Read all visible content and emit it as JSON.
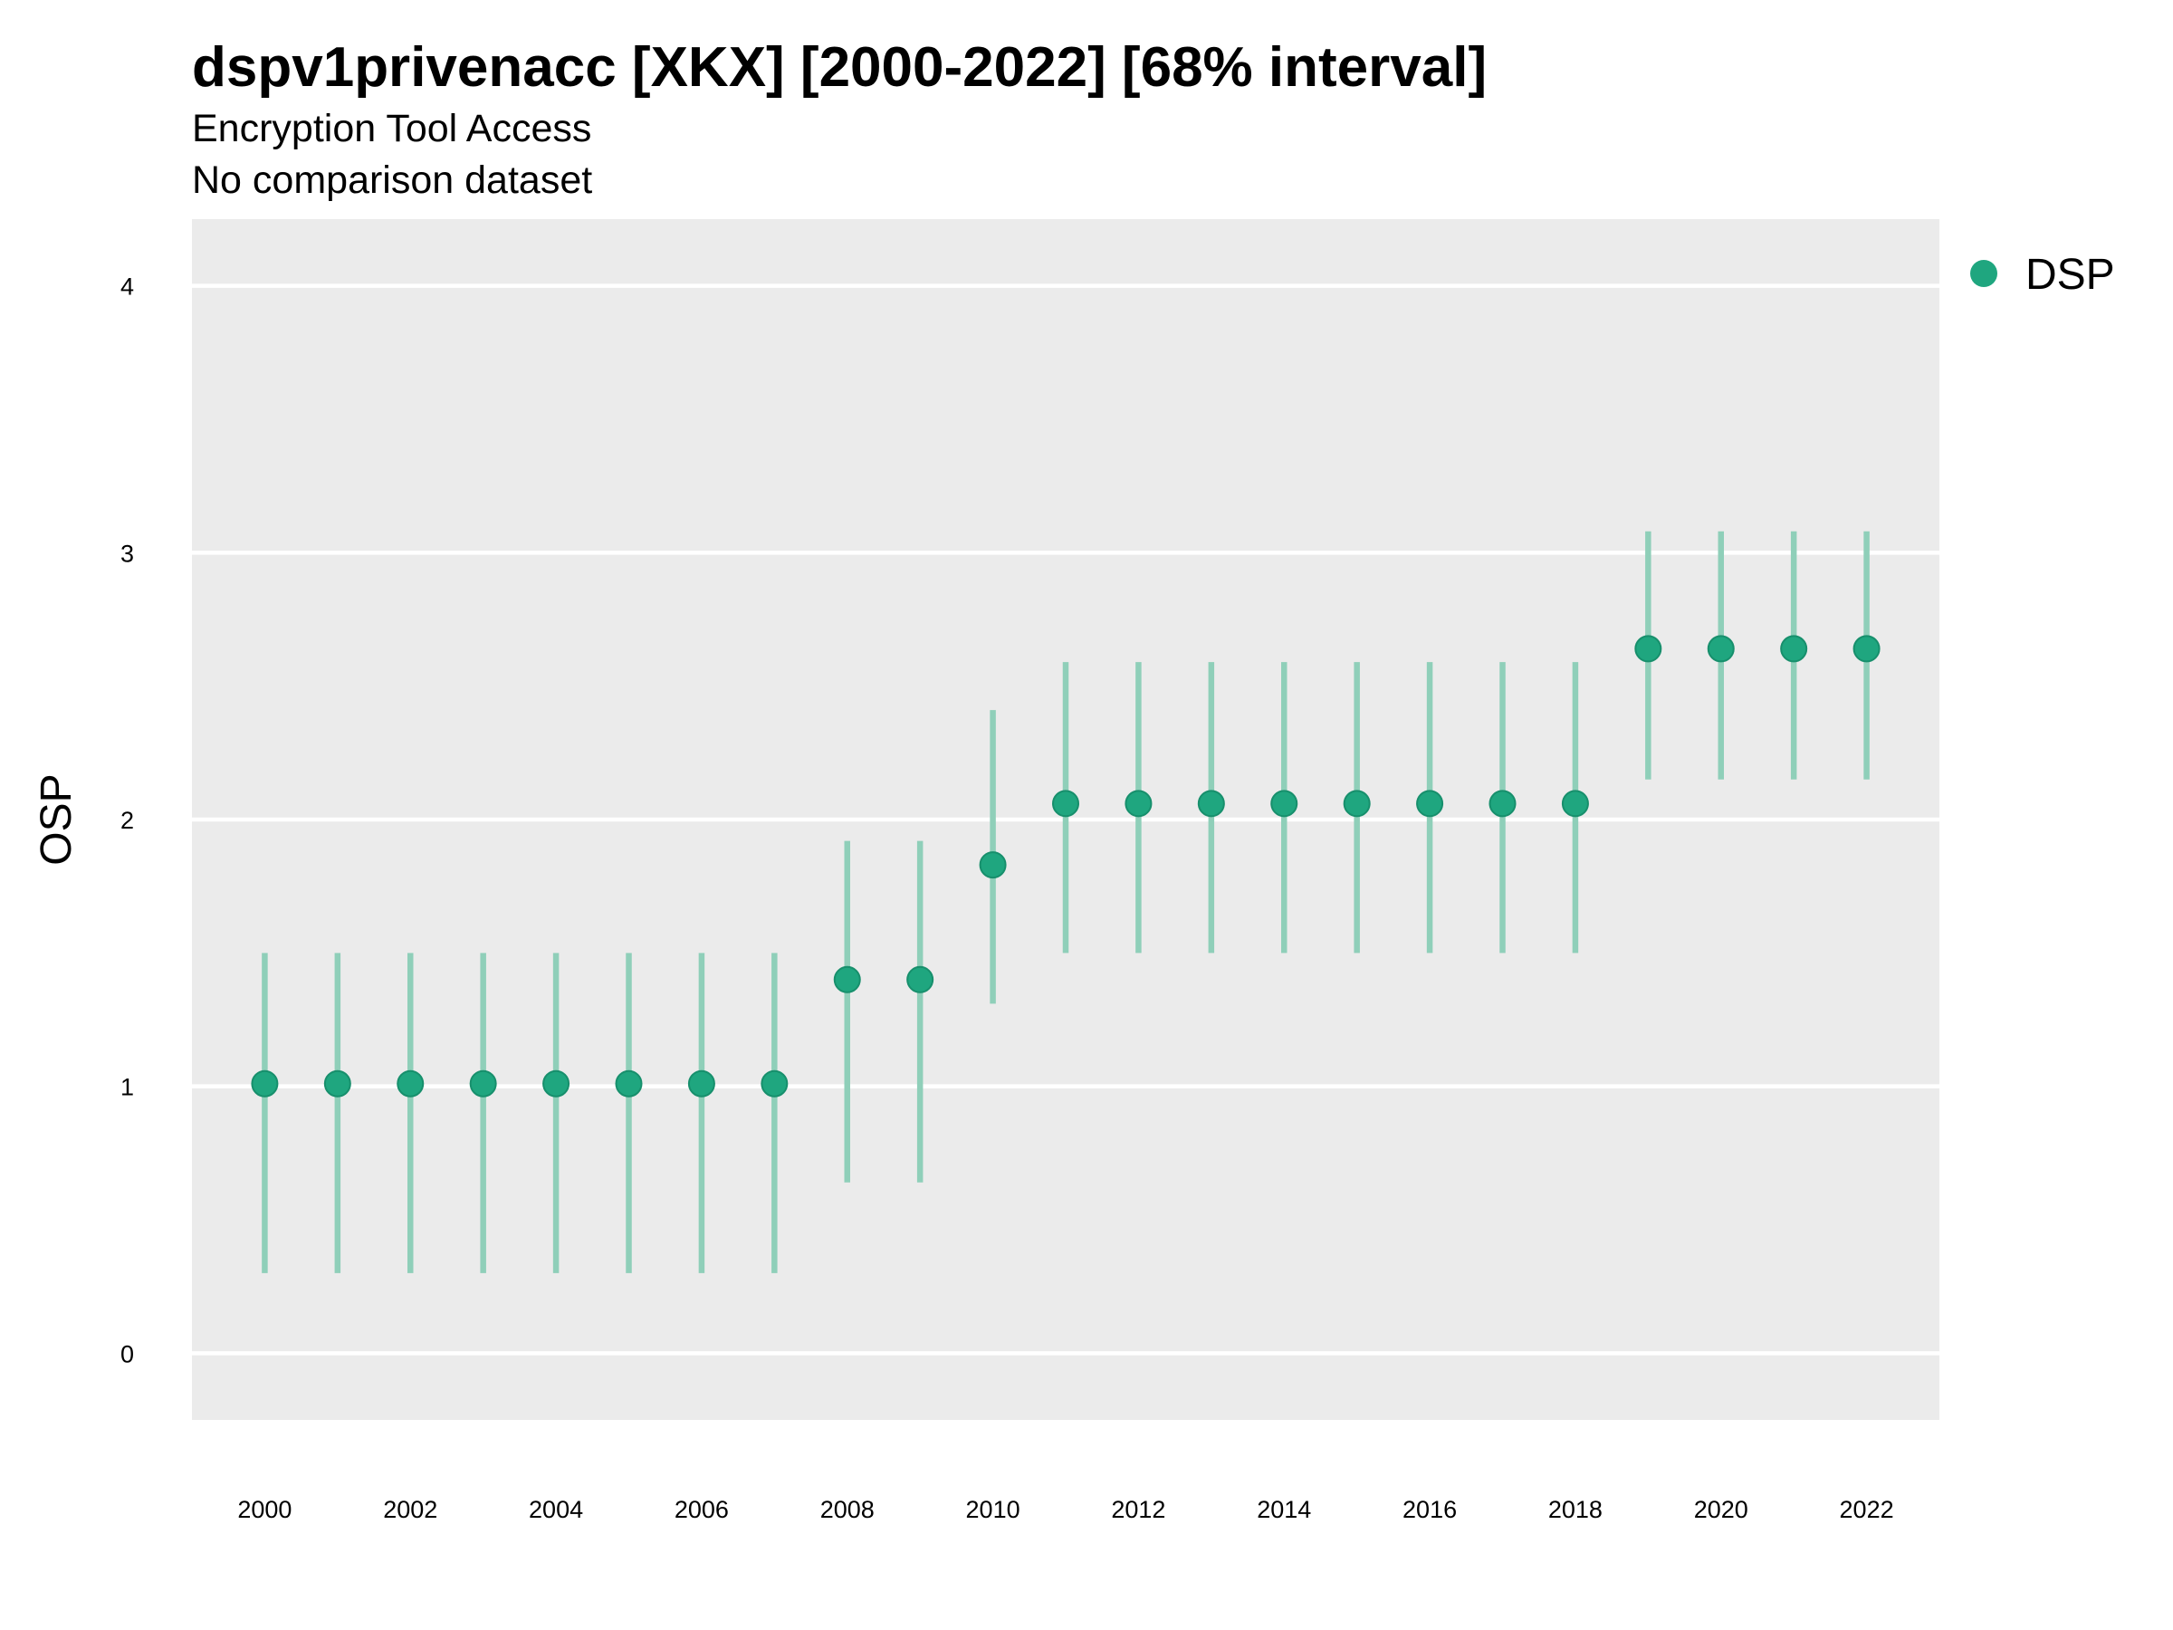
{
  "chart_data": {
    "type": "scatter",
    "title": "dspv1privenacc [XKX] [2000-2022] [68% interval]",
    "subtitle": "Encryption Tool Access",
    "subtitle2": "No comparison dataset",
    "xlabel": "",
    "ylabel": "OSP",
    "xlim": [
      1999,
      2023
    ],
    "ylim": [
      -0.25,
      4.25
    ],
    "x_ticks": [
      2000,
      2002,
      2004,
      2006,
      2008,
      2010,
      2012,
      2014,
      2016,
      2018,
      2020,
      2022
    ],
    "y_ticks": [
      0,
      1,
      2,
      3,
      4
    ],
    "grid": "horizontal",
    "legend_position": "right",
    "point_color": "#1fa67f",
    "interval_color": "#8fcfb9",
    "panel_background": "#ebebeb",
    "series": [
      {
        "name": "DSP",
        "x": [
          2000,
          2001,
          2002,
          2003,
          2004,
          2005,
          2006,
          2007,
          2008,
          2009,
          2010,
          2011,
          2012,
          2013,
          2014,
          2015,
          2016,
          2017,
          2018,
          2019,
          2020,
          2021,
          2022
        ],
        "y": [
          1.01,
          1.01,
          1.01,
          1.01,
          1.01,
          1.01,
          1.01,
          1.01,
          1.4,
          1.4,
          1.83,
          2.06,
          2.06,
          2.06,
          2.06,
          2.06,
          2.06,
          2.06,
          2.06,
          2.64,
          2.64,
          2.64,
          2.64
        ],
        "lower": [
          0.3,
          0.3,
          0.3,
          0.3,
          0.3,
          0.3,
          0.3,
          0.3,
          0.64,
          0.64,
          1.31,
          1.5,
          1.5,
          1.5,
          1.5,
          1.5,
          1.5,
          1.5,
          1.5,
          2.15,
          2.15,
          2.15,
          2.15
        ],
        "upper": [
          1.5,
          1.5,
          1.5,
          1.5,
          1.5,
          1.5,
          1.5,
          1.5,
          1.92,
          1.92,
          2.41,
          2.59,
          2.59,
          2.59,
          2.59,
          2.59,
          2.59,
          2.59,
          2.59,
          3.08,
          3.08,
          3.08,
          3.08
        ]
      }
    ]
  }
}
